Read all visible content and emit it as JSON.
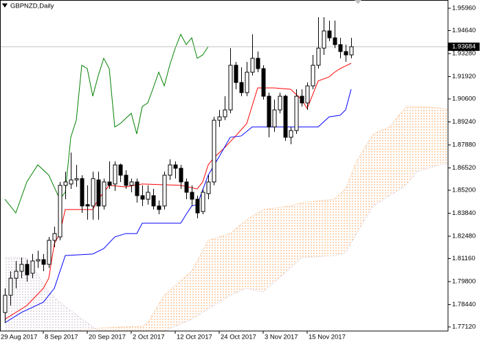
{
  "chart_data": {
    "type": "candlestick",
    "title": "GBPNZD,Daily",
    "xlim": [
      0.125,
      81.625
    ],
    "ylim": [
      1.76878,
      1.96447
    ],
    "grid": false,
    "xticks": [
      {
        "value": 0,
        "label": "29 Aug 2017"
      },
      {
        "value": 8,
        "label": "8 Sep 2017"
      },
      {
        "value": 16,
        "label": "20 Sep 2017"
      },
      {
        "value": 24,
        "label": "2 Oct 2017"
      },
      {
        "value": 32,
        "label": "12 Oct 2017"
      },
      {
        "value": 40,
        "label": "24 Oct 2017"
      },
      {
        "value": 48,
        "label": "3 Nov 2017"
      },
      {
        "value": 56,
        "label": "15 Nov 2017"
      }
    ],
    "yticks": [
      {
        "value": 1.9596,
        "label": "1.95960"
      },
      {
        "value": 1.9464,
        "label": "1.94640"
      },
      {
        "value": 1.9328,
        "label": "1.93280"
      },
      {
        "value": 1.9192,
        "label": "1.91920"
      },
      {
        "value": 1.906,
        "label": "1.90600"
      },
      {
        "value": 1.8924,
        "label": "1.89240"
      },
      {
        "value": 1.8788,
        "label": "1.87880"
      },
      {
        "value": 1.8652,
        "label": "1.86520"
      },
      {
        "value": 1.852,
        "label": "1.85200"
      },
      {
        "value": 1.8384,
        "label": "1.83840"
      },
      {
        "value": 1.8248,
        "label": "1.82480"
      },
      {
        "value": 1.8116,
        "label": "1.81160"
      },
      {
        "value": 1.798,
        "label": "1.79800"
      },
      {
        "value": 1.7844,
        "label": "1.78440"
      },
      {
        "value": 1.7712,
        "label": "1.77120"
      }
    ],
    "current_price": 1.93684,
    "up_color": "#ffffff",
    "down_color": "#000000",
    "x": [
      1,
      2,
      3,
      4,
      5,
      6,
      7,
      8,
      9,
      10,
      11,
      12,
      13,
      14,
      15,
      16,
      17,
      18,
      19,
      20,
      21,
      22,
      23,
      24,
      25,
      26,
      27,
      28,
      29,
      30,
      31,
      32,
      33,
      34,
      35,
      36,
      37,
      38,
      39,
      40,
      41,
      42,
      43,
      44,
      45,
      46,
      47,
      48,
      49,
      50,
      51,
      52,
      53,
      54,
      55,
      56,
      57,
      58,
      59,
      60,
      61,
      62,
      63,
      64
    ],
    "open": [
      1.7797,
      1.7899,
      1.8,
      1.8041,
      1.8082,
      1.8029,
      1.8102,
      1.811,
      1.8082,
      1.8224,
      1.8244,
      1.8549,
      1.8557,
      1.8581,
      1.8589,
      1.8435,
      1.8427,
      1.8581,
      1.8427,
      1.8569,
      1.8557,
      1.867,
      1.8609,
      1.8549,
      1.8569,
      1.8488,
      1.8467,
      1.8488,
      1.8427,
      1.8427,
      1.8609,
      1.867,
      1.865,
      1.8569,
      1.8508,
      1.8467,
      1.8394,
      1.85,
      1.8569,
      1.8934,
      1.8954,
      1.8995,
      1.9259,
      1.9157,
      1.9097,
      1.9218,
      1.93,
      1.9239,
      1.9076,
      1.8894,
      1.8995,
      1.9076,
      1.8833,
      1.8873,
      1.9076,
      1.9036,
      1.9137,
      1.9259,
      1.936,
      1.9462,
      1.9421,
      1.9381,
      1.934,
      1.932
    ],
    "high": [
      1.794,
      1.8041,
      1.8102,
      1.8122,
      1.811,
      1.8143,
      1.8163,
      1.8143,
      1.8244,
      1.8305,
      1.8569,
      1.863,
      1.8743,
      1.867,
      1.8609,
      1.8549,
      1.863,
      1.863,
      1.8589,
      1.8691,
      1.8691,
      1.8678,
      1.8638,
      1.8589,
      1.8589,
      1.8549,
      1.8549,
      1.8528,
      1.8459,
      1.863,
      1.8703,
      1.8691,
      1.867,
      1.8589,
      1.8549,
      1.8488,
      1.8528,
      1.8609,
      1.8954,
      1.8995,
      1.9076,
      1.936,
      1.9279,
      1.9247,
      1.9279,
      1.9442,
      1.934,
      1.9259,
      1.9097,
      1.9056,
      1.9097,
      1.9085,
      1.8894,
      1.9117,
      1.9117,
      1.9157,
      1.932,
      1.9543,
      1.9543,
      1.9523,
      1.9523,
      1.9421,
      1.9381,
      1.9421
    ],
    "low": [
      1.7736,
      1.7838,
      1.794,
      1.8,
      1.798,
      1.8,
      1.8061,
      1.8041,
      1.8061,
      1.8183,
      1.8224,
      1.8467,
      1.8528,
      1.854,
      1.8386,
      1.8346,
      1.8346,
      1.8346,
      1.8406,
      1.8528,
      1.8516,
      1.8569,
      1.8528,
      1.8508,
      1.8447,
      1.8427,
      1.8435,
      1.8406,
      1.8378,
      1.8406,
      1.8581,
      1.8589,
      1.8528,
      1.8467,
      1.8427,
      1.8354,
      1.8378,
      1.8467,
      1.8549,
      1.8894,
      1.8934,
      1.8975,
      1.9117,
      1.9076,
      1.9076,
      1.9198,
      1.9218,
      1.9056,
      1.8833,
      1.8865,
      1.8975,
      1.8812,
      1.8792,
      1.8853,
      1.9015,
      1.8995,
      1.9117,
      1.9239,
      1.932,
      1.9401,
      1.936,
      1.93,
      1.9279,
      1.93
    ],
    "close": [
      1.7899,
      1.8,
      1.8041,
      1.8082,
      1.802,
      1.8102,
      1.811,
      1.8082,
      1.8224,
      1.8264,
      1.8549,
      1.8569,
      1.8581,
      1.8589,
      1.8427,
      1.8427,
      1.8589,
      1.8427,
      1.8569,
      1.8549,
      1.867,
      1.8609,
      1.8549,
      1.8569,
      1.8488,
      1.8467,
      1.8508,
      1.8427,
      1.8406,
      1.8609,
      1.867,
      1.865,
      1.8569,
      1.8508,
      1.8467,
      1.8386,
      1.8508,
      1.8569,
      1.8934,
      1.8954,
      1.8995,
      1.9259,
      1.9157,
      1.9097,
      1.9218,
      1.93,
      1.9239,
      1.9076,
      1.8894,
      1.8995,
      1.9076,
      1.8833,
      1.8873,
      1.9076,
      1.9036,
      1.9137,
      1.9259,
      1.936,
      1.9462,
      1.9421,
      1.9381,
      1.934,
      1.932,
      1.93684
    ],
    "lines": [
      {
        "color": "#ff0000",
        "x": [
          1,
          5,
          8,
          9,
          10,
          11,
          12,
          17,
          18,
          20,
          23,
          26,
          33,
          36,
          37,
          38,
          39,
          41,
          43,
          45,
          47,
          50,
          53,
          55,
          56,
          58,
          60,
          61,
          62,
          64
        ],
        "values": [
          1.7757,
          1.7838,
          1.794,
          1.8,
          1.8203,
          1.8264,
          1.8406,
          1.8406,
          1.8467,
          1.8549,
          1.854,
          1.8557,
          1.8549,
          1.8528,
          1.8569,
          1.867,
          1.8711,
          1.8772,
          1.8841,
          1.8914,
          1.9125,
          1.9125,
          1.9117,
          1.9056,
          1.9003,
          1.9166,
          1.919,
          1.9218,
          1.9239,
          1.9271
        ]
      },
      {
        "color": "#0000ff",
        "x": [
          1,
          4,
          8,
          10,
          12,
          17,
          19,
          21,
          23,
          25,
          26,
          33,
          34,
          35,
          36,
          38,
          40,
          42,
          44,
          46,
          58,
          60,
          62,
          63,
          64
        ],
        "values": [
          1.7736,
          1.7797,
          1.7858,
          1.794,
          1.8134,
          1.8143,
          1.8175,
          1.8244,
          1.8264,
          1.8264,
          1.8325,
          1.8325,
          1.8378,
          1.8427,
          1.8435,
          1.8609,
          1.8719,
          1.8833,
          1.8841,
          1.8894,
          1.8894,
          1.8954,
          1.8963,
          1.8995,
          1.9117
        ]
      },
      {
        "color": "#008000",
        "x": [
          1,
          3,
          5,
          7,
          9,
          11,
          12,
          13,
          14,
          15,
          16,
          17,
          18,
          19,
          20,
          21,
          22,
          24,
          25,
          26,
          27,
          28,
          29,
          30,
          31,
          32,
          33,
          34,
          35,
          36,
          37,
          38
        ],
        "values": [
          1.8467,
          1.8386,
          1.8569,
          1.867,
          1.8609,
          1.8467,
          1.8508,
          1.8833,
          1.8934,
          1.9259,
          1.9239,
          1.9076,
          1.9198,
          1.93,
          1.9239,
          1.8894,
          1.8914,
          1.8975,
          1.8853,
          1.9015,
          1.9036,
          1.9125,
          1.9218,
          1.9137,
          1.9259,
          1.936,
          1.9442,
          1.9381,
          1.9421,
          1.93,
          1.932,
          1.9369
        ]
      }
    ],
    "cloud": {
      "up_color": "#f4a460",
      "down_color": "#c8b4c8",
      "x": [
        1,
        5,
        9,
        11,
        16,
        18,
        22,
        26,
        27,
        30,
        35,
        38,
        42,
        45,
        48,
        53,
        55,
        61,
        63,
        65,
        68,
        71,
        74,
        76,
        80,
        82
      ],
      "span_a": [
        1.7655,
        1.7663,
        1.7672,
        1.7676,
        1.7696,
        1.7704,
        1.7712,
        1.7716,
        1.7736,
        1.7899,
        1.8041,
        1.8224,
        1.8264,
        1.8346,
        1.8406,
        1.8427,
        1.8447,
        1.8467,
        1.8528,
        1.8691,
        1.8853,
        1.8894,
        1.9015,
        1.9015,
        1.9007,
        1.8995
      ],
      "span_b": [
        1.8122,
        1.8122,
        1.7919,
        1.7858,
        1.7736,
        1.7688,
        1.7672,
        1.7655,
        1.7655,
        1.7688,
        1.7757,
        1.7818,
        1.7899,
        1.794,
        1.7919,
        1.8061,
        1.8122,
        1.8134,
        1.8151,
        1.8264,
        1.8427,
        1.8488,
        1.8549,
        1.863,
        1.867,
        1.8678
      ]
    }
  }
}
